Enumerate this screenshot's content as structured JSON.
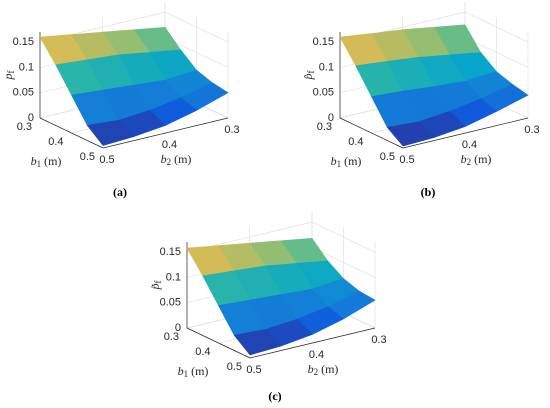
{
  "chart_data": [
    {
      "type": "surface",
      "caption": "(a)",
      "zlabel": {
        "base": "p",
        "sub": "f"
      },
      "xlabel": {
        "base": "b",
        "sub": "1",
        "unit": "(m)"
      },
      "ylabel": {
        "base": "b",
        "sub": "2",
        "unit": "(m)"
      },
      "x": [
        0.3,
        0.35,
        0.4,
        0.45,
        0.5
      ],
      "y": [
        0.3,
        0.35,
        0.4,
        0.45,
        0.5
      ],
      "z": [
        [
          0.12,
          0.13,
          0.14,
          0.15,
          0.16
        ],
        [
          0.09,
          0.1,
          0.11,
          0.115,
          0.12
        ],
        [
          0.065,
          0.06,
          0.065,
          0.07,
          0.075
        ],
        [
          0.055,
          0.04,
          0.03,
          0.025,
          0.03
        ],
        [
          0.05,
          0.03,
          0.015,
          0.008,
          0.005
        ]
      ],
      "xlim": [
        0.3,
        0.5
      ],
      "ylim": [
        0.3,
        0.5
      ],
      "zlim": [
        0,
        0.17
      ],
      "xticks": [
        0.3,
        0.4,
        0.5
      ],
      "yticks": [
        0.3,
        0.4,
        0.5
      ],
      "zticks": [
        0,
        0.05,
        0.1,
        0.15
      ],
      "grid": true
    },
    {
      "type": "surface",
      "caption": "(b)",
      "zlabel": {
        "base": "p̂",
        "sub": "f"
      },
      "xlabel": {
        "base": "b",
        "sub": "1",
        "unit": "(m)"
      },
      "ylabel": {
        "base": "b",
        "sub": "2",
        "unit": "(m)"
      },
      "x": [
        0.3,
        0.35,
        0.4,
        0.45,
        0.5
      ],
      "y": [
        0.3,
        0.35,
        0.4,
        0.45,
        0.5
      ],
      "z": [
        [
          0.125,
          0.135,
          0.145,
          0.152,
          0.16
        ],
        [
          0.085,
          0.095,
          0.105,
          0.112,
          0.118
        ],
        [
          0.062,
          0.058,
          0.062,
          0.068,
          0.072
        ],
        [
          0.052,
          0.038,
          0.028,
          0.022,
          0.026
        ],
        [
          0.045,
          0.028,
          0.013,
          0.006,
          0.004
        ]
      ],
      "xlim": [
        0.3,
        0.5
      ],
      "ylim": [
        0.3,
        0.5
      ],
      "zlim": [
        0,
        0.17
      ],
      "xticks": [
        0.3,
        0.4,
        0.5
      ],
      "yticks": [
        0.3,
        0.4,
        0.5
      ],
      "zticks": [
        0,
        0.05,
        0.1,
        0.15
      ],
      "grid": true
    },
    {
      "type": "surface",
      "caption": "(c)",
      "zlabel": {
        "base": "p̃",
        "sub": "f"
      },
      "xlabel": {
        "base": "b",
        "sub": "1",
        "unit": "(m)"
      },
      "ylabel": {
        "base": "b",
        "sub": "2",
        "unit": "(m)"
      },
      "x": [
        0.3,
        0.35,
        0.4,
        0.45,
        0.5
      ],
      "y": [
        0.3,
        0.35,
        0.4,
        0.45,
        0.5
      ],
      "z": [
        [
          0.118,
          0.128,
          0.138,
          0.148,
          0.158
        ],
        [
          0.088,
          0.098,
          0.108,
          0.113,
          0.118
        ],
        [
          0.068,
          0.062,
          0.066,
          0.07,
          0.074
        ],
        [
          0.058,
          0.042,
          0.032,
          0.027,
          0.03
        ],
        [
          0.055,
          0.033,
          0.017,
          0.009,
          0.006
        ]
      ],
      "xlim": [
        0.3,
        0.5
      ],
      "ylim": [
        0.3,
        0.5
      ],
      "zlim": [
        0,
        0.17
      ],
      "xticks": [
        0.3,
        0.4,
        0.5
      ],
      "yticks": [
        0.3,
        0.4,
        0.5
      ],
      "zticks": [
        0,
        0.05,
        0.1,
        0.15
      ],
      "grid": true
    }
  ]
}
